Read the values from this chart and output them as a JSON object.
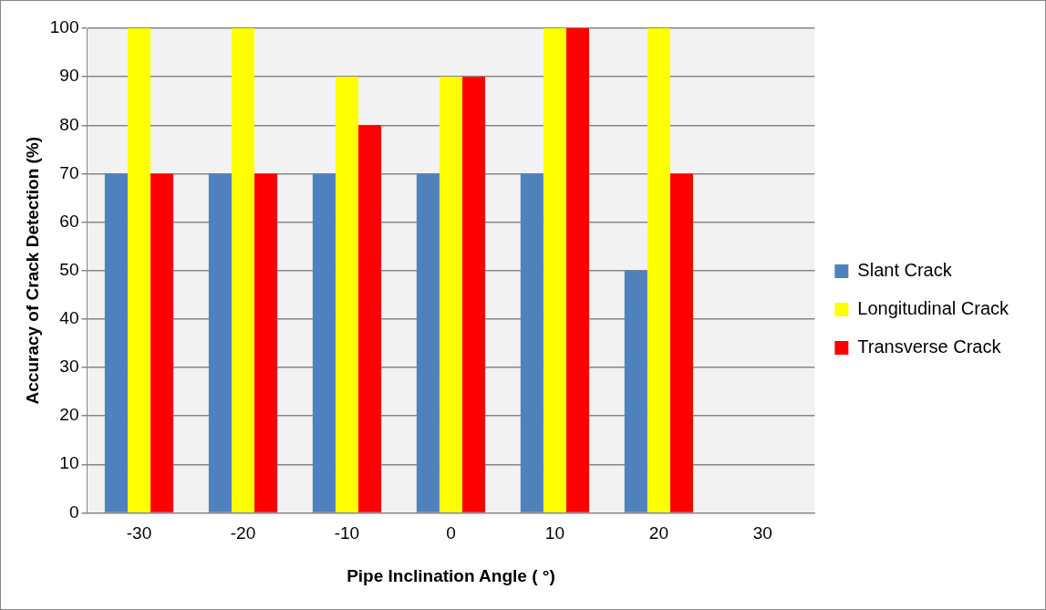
{
  "chart_data": {
    "type": "bar",
    "xlabel": "Pipe Inclination Angle ( °)",
    "ylabel": "Accuracy of Crack Detection (%)",
    "categories": [
      "-30",
      "-20",
      "-10",
      "0",
      "10",
      "20",
      "30"
    ],
    "series": [
      {
        "name": "Slant Crack",
        "color": "#4f81bd",
        "values": [
          70,
          70,
          70,
          70,
          70,
          50,
          null
        ]
      },
      {
        "name": "Longitudinal Crack",
        "color": "#ffff00",
        "values": [
          100,
          100,
          90,
          90,
          100,
          100,
          null
        ]
      },
      {
        "name": "Transverse Crack",
        "color": "#ff0000",
        "values": [
          70,
          70,
          80,
          90,
          100,
          70,
          null
        ]
      }
    ],
    "ylim": [
      0,
      100
    ],
    "yticks": [
      0,
      10,
      20,
      30,
      40,
      50,
      60,
      70,
      80,
      90,
      100
    ],
    "grid": "y",
    "legend": "right"
  }
}
